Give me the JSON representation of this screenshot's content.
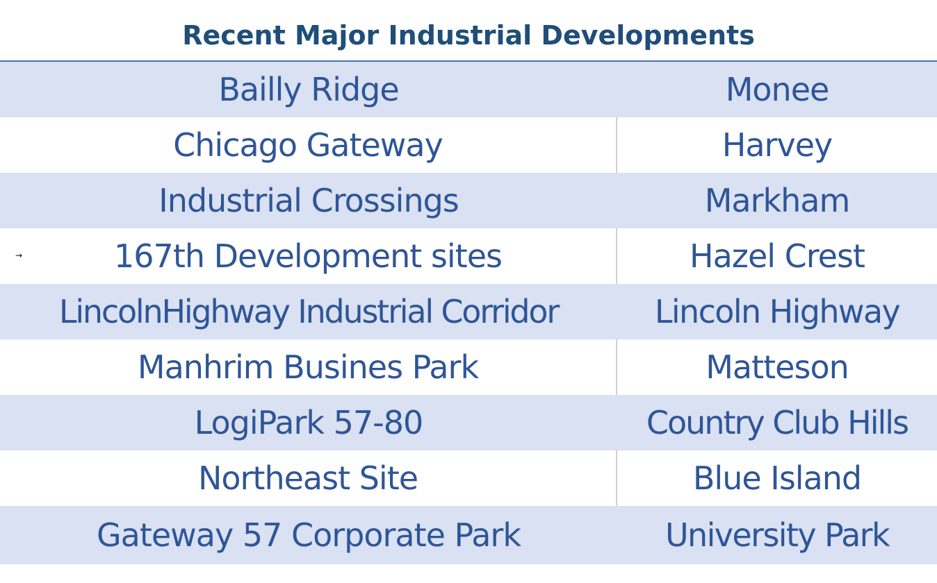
{
  "title": "Recent Major Industrial Developments",
  "rows": [
    {
      "name": "Bailly Ridge",
      "place": "Monee"
    },
    {
      "name": "Chicago Gateway",
      "place": "Harvey"
    },
    {
      "name": "Industrial Crossings",
      "place": "Markham"
    },
    {
      "name": "167th Development sites",
      "place": "Hazel Crest"
    },
    {
      "name": "LincolnHighway Industrial Corridor",
      "place": "Lincoln Highway"
    },
    {
      "name": "Manhrim Busines Park",
      "place": "Matteson"
    },
    {
      "name": "LogiPark 57-80",
      "place": "Country Club Hills"
    },
    {
      "name": "Northeast Site",
      "place": "Blue Island"
    },
    {
      "name": "Gateway 57 Corporate Park",
      "place": "University Park"
    }
  ],
  "marker_glyph": "→",
  "colors": {
    "title": "#1f4e79",
    "text": "#2f5597",
    "band": "#d9e1f2",
    "rule": "#4a6fa5"
  }
}
